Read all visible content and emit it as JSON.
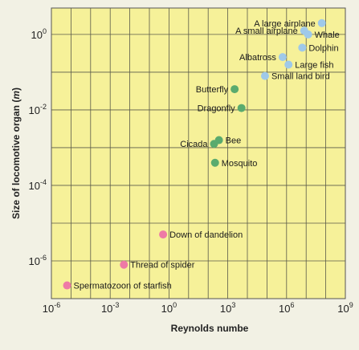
{
  "chart_data": {
    "type": "scatter",
    "title": "",
    "xlabel": "Reynolds numbe",
    "ylabel": "Size of locomotive organ (m)",
    "ylabel_main": "Size of locomotive organ (",
    "ylabel_unit": "m",
    "ylabel_close": ")",
    "xscale": "log",
    "yscale": "log",
    "xlim_exp": [
      -6,
      9
    ],
    "ylim_exp": [
      -7,
      0.7
    ],
    "x_ticks": [
      {
        "exp": -6,
        "label": "10",
        "sup": "-6"
      },
      {
        "exp": -3,
        "label": "10",
        "sup": "-3"
      },
      {
        "exp": 0,
        "label": "10",
        "sup": "0"
      },
      {
        "exp": 3,
        "label": "10",
        "sup": "3"
      },
      {
        "exp": 6,
        "label": "10",
        "sup": "6"
      },
      {
        "exp": 9,
        "label": "10",
        "sup": "9"
      }
    ],
    "y_ticks": [
      {
        "exp": 0,
        "label": "10",
        "sup": "0"
      },
      {
        "exp": -2,
        "label": "10",
        "sup": "-2"
      },
      {
        "exp": -4,
        "label": "10",
        "sup": "-4"
      },
      {
        "exp": -6,
        "label": "10",
        "sup": "-6"
      }
    ],
    "grid": true,
    "colors": {
      "plot_bg": "#f6f199",
      "grid": "#5a5a4a",
      "blue": "#9fc9e9",
      "green": "#5aab6e",
      "pink": "#ee7aa6"
    },
    "points": [
      {
        "label": "A large airplane",
        "log_re": 7.8,
        "log_size": 0.3,
        "color": "blue",
        "anchor": "end"
      },
      {
        "label": "A small airplane",
        "log_re": 6.9,
        "log_size": 0.1,
        "color": "blue",
        "anchor": "end"
      },
      {
        "label": "Whale",
        "log_re": 7.1,
        "log_size": 0.0,
        "color": "blue",
        "anchor": "start"
      },
      {
        "label": "Dolphin",
        "log_re": 6.8,
        "log_size": -0.35,
        "color": "blue",
        "anchor": "start"
      },
      {
        "label": "Albatross",
        "log_re": 5.8,
        "log_size": -0.6,
        "color": "blue",
        "anchor": "end"
      },
      {
        "label": "Large fish",
        "log_re": 6.1,
        "log_size": -0.8,
        "color": "blue",
        "anchor": "start"
      },
      {
        "label": "Small land bird",
        "log_re": 4.9,
        "log_size": -1.1,
        "color": "blue",
        "anchor": "start"
      },
      {
        "label": "Butterfly",
        "log_re": 3.35,
        "log_size": -1.45,
        "color": "green",
        "anchor": "end"
      },
      {
        "label": "Dragonfly",
        "log_re": 3.7,
        "log_size": -1.95,
        "color": "green",
        "anchor": "end"
      },
      {
        "label": "Bee",
        "log_re": 2.55,
        "log_size": -2.8,
        "color": "green",
        "anchor": "start"
      },
      {
        "label": "Cicada",
        "log_re": 2.3,
        "log_size": -2.9,
        "color": "green",
        "anchor": "end"
      },
      {
        "label": "Mosquito",
        "log_re": 2.35,
        "log_size": -3.4,
        "color": "green",
        "anchor": "start"
      },
      {
        "label": "Down of dandelion",
        "log_re": -0.3,
        "log_size": -5.3,
        "color": "pink",
        "anchor": "start"
      },
      {
        "label": "Thread of spider",
        "log_re": -2.3,
        "log_size": -6.1,
        "color": "pink",
        "anchor": "start"
      },
      {
        "label": "Spermatozoon of starfish",
        "log_re": -5.2,
        "log_size": -6.65,
        "color": "pink",
        "anchor": "start"
      }
    ]
  }
}
